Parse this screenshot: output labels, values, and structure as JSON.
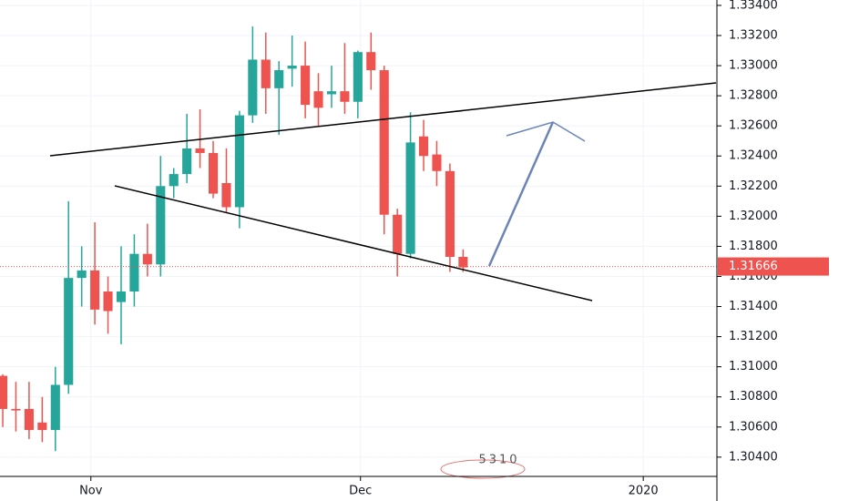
{
  "chart_data": {
    "type": "candlestick",
    "x": [
      0,
      1,
      2,
      3,
      4,
      5,
      6,
      7,
      8,
      9,
      10,
      11,
      12,
      13,
      14,
      15,
      16,
      17,
      18,
      19,
      20,
      21,
      22,
      23,
      24,
      25,
      26,
      27,
      28,
      29,
      30,
      31,
      32,
      33,
      34,
      35
    ],
    "open": [
      1.3094,
      1.3072,
      1.3072,
      1.3063,
      1.3058,
      1.3088,
      1.3159,
      1.3164,
      1.315,
      1.3143,
      1.315,
      1.3175,
      1.3168,
      1.322,
      1.3228,
      1.3245,
      1.3242,
      1.3222,
      1.3206,
      1.3267,
      1.3304,
      1.3285,
      1.3298,
      1.33,
      1.3283,
      1.3281,
      1.3283,
      1.3276,
      1.3309,
      1.3297,
      1.3201,
      1.3175,
      1.3253,
      1.3241,
      1.323,
      1.3173
    ],
    "high": [
      1.3095,
      1.309,
      1.309,
      1.308,
      1.31,
      1.321,
      1.318,
      1.3196,
      1.316,
      1.318,
      1.3188,
      1.3195,
      1.324,
      1.3232,
      1.3268,
      1.3271,
      1.325,
      1.3245,
      1.327,
      1.3326,
      1.3322,
      1.3303,
      1.332,
      1.3316,
      1.3295,
      1.33,
      1.3315,
      1.331,
      1.3322,
      1.33,
      1.3205,
      1.3269,
      1.3264,
      1.325,
      1.3235,
      1.3178
    ],
    "low": [
      1.306,
      1.3057,
      1.3052,
      1.305,
      1.3044,
      1.3082,
      1.314,
      1.3128,
      1.3122,
      1.3115,
      1.314,
      1.316,
      1.316,
      1.3212,
      1.3222,
      1.3232,
      1.3212,
      1.3202,
      1.3192,
      1.3262,
      1.3268,
      1.3254,
      1.3286,
      1.3265,
      1.326,
      1.3272,
      1.3268,
      1.3265,
      1.3284,
      1.3188,
      1.316,
      1.3172,
      1.323,
      1.322,
      1.3163,
      1.3163
    ],
    "close": [
      1.3072,
      1.3071,
      1.3058,
      1.3058,
      1.3088,
      1.3159,
      1.3164,
      1.3138,
      1.3137,
      1.315,
      1.3175,
      1.3168,
      1.322,
      1.3228,
      1.3245,
      1.3242,
      1.3215,
      1.3206,
      1.3267,
      1.3304,
      1.3285,
      1.3297,
      1.33,
      1.3274,
      1.3272,
      1.3283,
      1.3276,
      1.3309,
      1.3297,
      1.3201,
      1.3175,
      1.3249,
      1.324,
      1.323,
      1.3173,
      1.3166
    ],
    "up_color": "#26a69a",
    "down_color": "#ef5350",
    "xlim": [
      -0.21,
      54.3
    ],
    "xticks": [
      {
        "value": 6.7,
        "label": "Nov"
      },
      {
        "value": 27.2,
        "label": "Dec"
      },
      {
        "value": 48.7,
        "label": "2020"
      }
    ],
    "ylim": [
      1.30272,
      1.33436
    ],
    "yticks": [
      {
        "value": 1.304,
        "label": "1.30400"
      },
      {
        "value": 1.306,
        "label": "1.30600"
      },
      {
        "value": 1.308,
        "label": "1.30800"
      },
      {
        "value": 1.31,
        "label": "1.31000"
      },
      {
        "value": 1.312,
        "label": "1.31200"
      },
      {
        "value": 1.314,
        "label": "1.31400"
      },
      {
        "value": 1.316,
        "label": "1.31600"
      },
      {
        "value": 1.318,
        "label": "1.31800"
      },
      {
        "value": 1.32,
        "label": "1.32000"
      },
      {
        "value": 1.322,
        "label": "1.32200"
      },
      {
        "value": 1.324,
        "label": "1.32400"
      },
      {
        "value": 1.326,
        "label": "1.32600"
      },
      {
        "value": 1.328,
        "label": "1.32800"
      },
      {
        "value": 1.33,
        "label": "1.33000"
      },
      {
        "value": 1.332,
        "label": "1.33200"
      },
      {
        "value": 1.334,
        "label": "1.33400"
      }
    ],
    "grid": true,
    "last_price": 1.31666,
    "last_price_color": "#ef5350",
    "watermark": "5310"
  }
}
